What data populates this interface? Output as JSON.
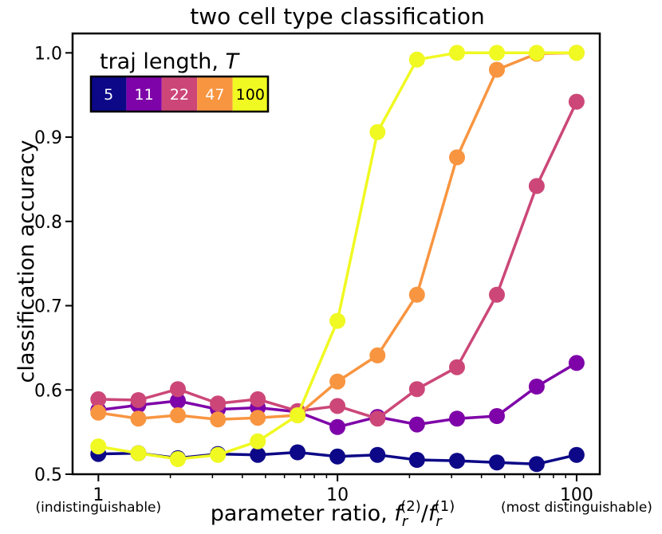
{
  "chart_data": {
    "type": "line",
    "title": "two cell type classification",
    "xlabel_prefix": "parameter ratio, ",
    "xlabel_f": "f",
    "xlabel_sub": "r",
    "xlabel_sup2": "(2)",
    "xlabel_slash": "/",
    "xlabel_sup1": "(1)",
    "ylabel": "classification accuracy",
    "x_scale": "log",
    "xlim": [
      0.78,
      125
    ],
    "ylim": [
      0.5,
      1.023
    ],
    "x_ticks": [
      1,
      10,
      100
    ],
    "x_tick_labels": [
      "1",
      "10",
      "100"
    ],
    "x_tick_notes": [
      "(indistinguishable)",
      "",
      "(most distinguishable)"
    ],
    "y_ticks": [
      0.5,
      0.6,
      0.7,
      0.8,
      0.9,
      1.0
    ],
    "y_tick_labels": [
      "0.5",
      "0.6",
      "0.7",
      "0.8",
      "0.9",
      "1.0"
    ],
    "legend_title": "traj length, ",
    "legend_title_var": "T",
    "legend_position": "top-left",
    "grid": false,
    "x": [
      1.0,
      1.47,
      2.15,
      3.16,
      4.64,
      6.81,
      10.0,
      14.7,
      21.5,
      31.6,
      46.4,
      68.1,
      100.0
    ],
    "series": [
      {
        "name": "5",
        "color": "#0d0887",
        "text_color": "#ffffff",
        "values": [
          0.524,
          0.525,
          0.519,
          0.524,
          0.523,
          0.526,
          0.521,
          0.523,
          0.517,
          0.516,
          0.514,
          0.512,
          0.523
        ]
      },
      {
        "name": "11",
        "color": "#7e03a8",
        "text_color": "#ffffff",
        "values": [
          0.576,
          0.582,
          0.587,
          0.577,
          0.579,
          0.574,
          0.556,
          0.568,
          0.559,
          0.566,
          0.569,
          0.604,
          0.632
        ]
      },
      {
        "name": "22",
        "color": "#cc4778",
        "text_color": "#ffffff",
        "values": [
          0.589,
          0.588,
          0.601,
          0.584,
          0.589,
          0.575,
          0.581,
          0.566,
          0.601,
          0.627,
          0.713,
          0.842,
          0.942
        ]
      },
      {
        "name": "47",
        "color": "#f89540",
        "text_color": "#ffffff",
        "values": [
          0.573,
          0.566,
          0.57,
          0.565,
          0.567,
          0.57,
          0.61,
          0.641,
          0.713,
          0.876,
          0.98,
          0.999,
          1.0
        ]
      },
      {
        "name": "100",
        "color": "#f0f921",
        "text_color": "#000000",
        "values": [
          0.533,
          0.525,
          0.518,
          0.523,
          0.539,
          0.57,
          0.682,
          0.906,
          0.992,
          1.0,
          1.0,
          1.0,
          1.0
        ]
      }
    ]
  }
}
